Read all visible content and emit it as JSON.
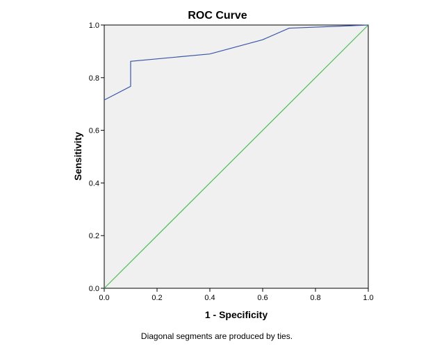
{
  "chart_data": {
    "type": "line",
    "title": "ROC Curve",
    "xlabel": "1 - Specificity",
    "ylabel": "Sensitivity",
    "footnote": "Diagonal segments are produced by ties.",
    "xlim": [
      0,
      1
    ],
    "ylim": [
      0,
      1
    ],
    "x_ticks": [
      "0.0",
      "0.2",
      "0.4",
      "0.6",
      "0.8",
      "1.0"
    ],
    "y_ticks": [
      "0.0",
      "0.2",
      "0.4",
      "0.6",
      "0.8",
      "1.0"
    ],
    "grid": false,
    "plot_background": "#f0f0f0",
    "series": [
      {
        "color": "#3a55a8",
        "x": [
          0.0,
          0.1,
          0.1,
          0.4,
          0.6,
          0.7,
          1.0
        ],
        "y": [
          0.715,
          0.767,
          0.862,
          0.89,
          0.944,
          0.988,
          1.0
        ]
      },
      {
        "color": "#4cbb5a",
        "x": [
          0.0,
          1.0
        ],
        "y": [
          0.0,
          1.0
        ]
      }
    ]
  }
}
